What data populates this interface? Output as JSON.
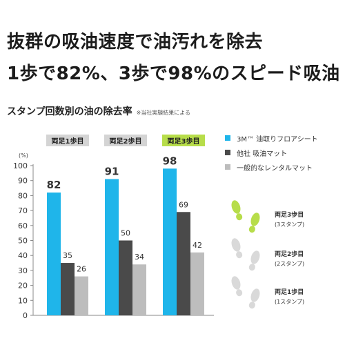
{
  "headline": {
    "line1": "抜群の吸油速度で油汚れを除去",
    "line2": "1歩で82%、3歩で98%のスピード吸油"
  },
  "subtitle": {
    "title": "スタンプ回数別の油の除去率",
    "note": "※当社実験結果による"
  },
  "colors": {
    "series_3m": "#1fb5ea",
    "series_other": "#4a4a4a",
    "series_rental": "#bdbdbd",
    "accent_green": "#b7dd4a",
    "footprint_gray": "#d9d9d9",
    "label_bg_gray": "#d4d4d4"
  },
  "chart_data": {
    "type": "bar",
    "categories": [
      "両足1歩目",
      "両足2歩目",
      "両足3歩目"
    ],
    "highlighted_category": "両足3歩目",
    "series": [
      {
        "name": "3M™ 油取りフロアシート",
        "values": [
          82,
          91,
          98
        ]
      },
      {
        "name": "他社 吸油マット",
        "values": [
          35,
          50,
          69
        ]
      },
      {
        "name": "一般的なレンタルマット",
        "values": [
          26,
          34,
          42
        ]
      }
    ],
    "y_unit": "(%)",
    "ylim": [
      0,
      100
    ],
    "yticks": [
      0,
      10,
      20,
      30,
      40,
      50,
      60,
      70,
      80,
      90,
      100
    ],
    "grid": false,
    "legend_position": "right"
  },
  "steps_legend": [
    {
      "label": "両足3歩目",
      "sub": "(3スタンプ)",
      "highlight": true
    },
    {
      "label": "両足2歩目",
      "sub": "(2スタンプ)",
      "highlight": false
    },
    {
      "label": "両足1歩目",
      "sub": "(1スタンプ)",
      "highlight": false
    }
  ]
}
